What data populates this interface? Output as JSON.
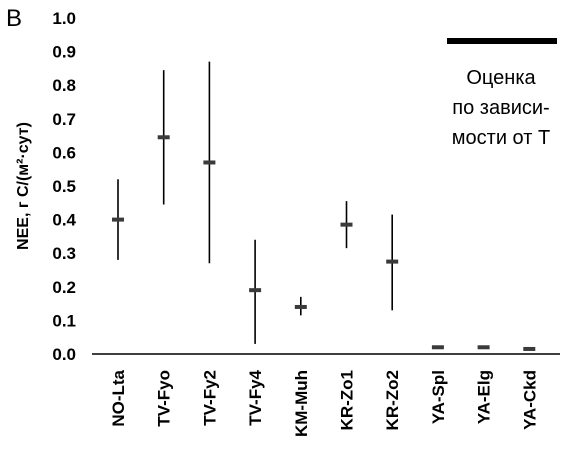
{
  "chart_data": {
    "type": "scatter",
    "panel_label": "B",
    "ylabel": "NEE, г С/(м²·сут)",
    "ylim": [
      0,
      1.0
    ],
    "yticks": [
      "0.0",
      "0.1",
      "0.2",
      "0.3",
      "0.4",
      "0.5",
      "0.6",
      "0.7",
      "0.8",
      "0.9",
      "1.0"
    ],
    "categories": [
      "NO-Lta",
      "TV-Fyo",
      "TV-Fy2",
      "TV-Fy4",
      "KM-Muh",
      "KR-Zo1",
      "KR-Zo2",
      "YA-Spl",
      "YA-Elg",
      "YA-Ckd"
    ],
    "series": [
      {
        "values": [
          0.4,
          0.645,
          0.57,
          0.19,
          0.14,
          0.385,
          0.275,
          0.02,
          0.02,
          0.015
        ],
        "low": [
          0.28,
          0.445,
          0.27,
          0.03,
          0.115,
          0.315,
          0.13,
          0.02,
          0.02,
          0.015
        ],
        "high": [
          0.52,
          0.845,
          0.87,
          0.34,
          0.17,
          0.455,
          0.415,
          0.02,
          0.02,
          0.015
        ]
      }
    ],
    "legend": {
      "lines": [
        "Оценка",
        "по зависи-",
        "мости от Т"
      ],
      "placement": "top-right"
    },
    "grid": false
  }
}
